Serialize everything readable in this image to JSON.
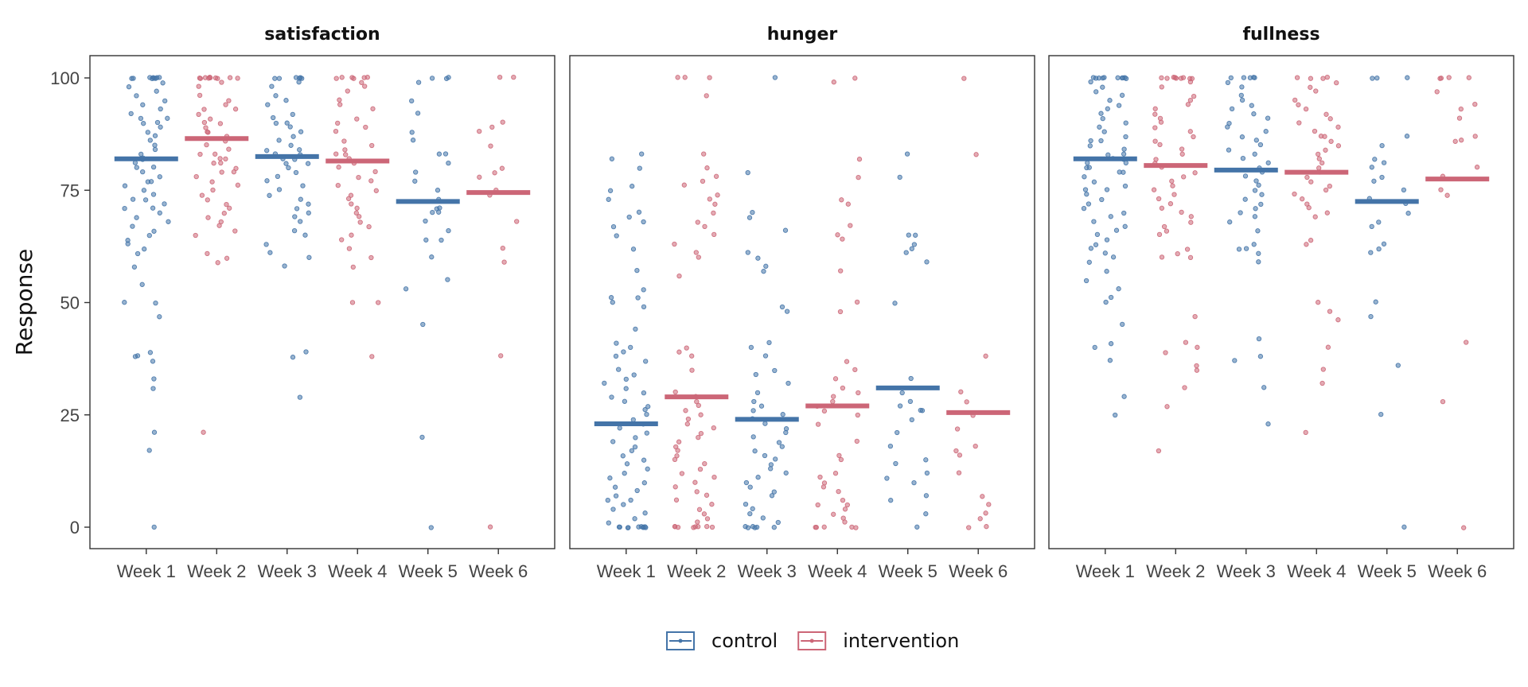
{
  "chart_data": {
    "type": "scatter",
    "subtype": "faceted jitter strip plot with group mean bars",
    "facets": [
      "satisfaction",
      "hunger",
      "fullness"
    ],
    "x_categories": [
      "Week 1",
      "Week 2",
      "Week 3",
      "Week 4",
      "Week 5",
      "Week 6"
    ],
    "ylabel": "Response",
    "yticks": [
      0,
      25,
      50,
      75,
      100
    ],
    "ylim": [
      -5,
      105
    ],
    "shared_y_axis": true,
    "grid": false,
    "legend": {
      "placement": "bottom-center",
      "entries": [
        {
          "name": "control",
          "color": "#4474a8"
        },
        {
          "name": "intervention",
          "color": "#cc6677"
        }
      ]
    },
    "week_group": {
      "Week 1": "control",
      "Week 2": "intervention",
      "Week 3": "control",
      "Week 4": "intervention",
      "Week 5": "control",
      "Week 6": "intervention"
    },
    "means": {
      "satisfaction": [
        82,
        86.5,
        82.5,
        81.5,
        72.5,
        74.5
      ],
      "hunger": [
        23,
        29,
        24,
        27,
        31,
        25.5
      ],
      "fullness": [
        82,
        80.5,
        79.5,
        79,
        72.5,
        77.5
      ]
    },
    "points": {
      "satisfaction": [
        [
          100,
          100,
          100,
          100,
          100,
          100,
          100,
          100,
          100,
          99,
          98,
          97,
          96,
          95,
          94,
          93,
          92,
          91,
          91,
          90,
          90,
          89,
          88,
          87,
          86,
          85,
          84,
          83,
          82,
          82,
          81,
          80,
          80,
          79,
          78,
          77,
          77,
          76,
          75,
          74,
          73,
          73,
          72,
          71,
          71,
          70,
          69,
          68,
          67,
          66,
          65,
          64,
          63,
          62,
          61,
          58,
          54,
          50,
          50,
          47,
          39,
          38,
          38,
          37,
          33,
          31,
          21,
          17,
          0
        ],
        [
          100,
          100,
          100,
          100,
          100,
          100,
          100,
          100,
          100,
          100,
          99,
          98,
          96,
          95,
          94,
          93,
          93,
          92,
          91,
          90,
          90,
          89,
          88,
          88,
          87,
          86,
          85,
          84,
          83,
          83,
          82,
          82,
          81,
          81,
          80,
          79,
          79,
          78,
          77,
          76,
          75,
          74,
          73,
          72,
          71,
          70,
          69,
          68,
          67,
          66,
          65,
          61,
          60,
          59,
          21
        ],
        [
          100,
          100,
          100,
          100,
          100,
          100,
          99,
          98,
          96,
          95,
          94,
          92,
          91,
          90,
          90,
          89,
          88,
          87,
          86,
          85,
          84,
          84,
          83,
          83,
          82,
          82,
          81,
          81,
          80,
          79,
          78,
          77,
          76,
          75,
          74,
          73,
          72,
          71,
          70,
          69,
          68,
          66,
          65,
          63,
          61,
          60,
          58,
          39,
          38,
          29
        ],
        [
          100,
          100,
          100,
          100,
          100,
          100,
          99,
          98,
          97,
          95,
          94,
          93,
          91,
          90,
          89,
          88,
          86,
          85,
          84,
          83,
          83,
          82,
          81,
          80,
          79,
          78,
          77,
          76,
          75,
          74,
          73,
          72,
          71,
          70,
          69,
          68,
          67,
          65,
          64,
          62,
          60,
          58,
          50,
          50,
          38
        ],
        [
          100,
          100,
          100,
          99,
          95,
          92,
          88,
          86,
          83,
          83,
          81,
          79,
          77,
          75,
          73,
          71,
          71,
          70,
          70,
          68,
          66,
          64,
          64,
          60,
          55,
          53,
          45,
          20,
          0
        ],
        [
          100,
          100,
          90,
          89,
          88,
          85,
          80,
          79,
          78,
          75,
          74,
          68,
          62,
          59,
          38,
          0
        ]
      ],
      "hunger": [
        [
          83,
          82,
          80,
          76,
          75,
          73,
          70,
          69,
          68,
          67,
          65,
          62,
          57,
          53,
          51,
          51,
          50,
          49,
          44,
          41,
          40,
          39,
          38,
          37,
          35,
          34,
          33,
          32,
          31,
          30,
          29,
          28,
          27,
          26,
          25,
          24,
          23,
          22,
          21,
          20,
          19,
          18,
          17,
          16,
          15,
          14,
          13,
          12,
          11,
          10,
          9,
          8,
          7,
          6,
          6,
          5,
          4,
          3,
          2,
          1,
          0,
          0,
          0,
          0,
          0,
          0,
          0,
          0,
          0,
          0
        ],
        [
          100,
          100,
          100,
          96,
          83,
          80,
          78,
          77,
          76,
          74,
          73,
          72,
          70,
          68,
          67,
          65,
          63,
          61,
          60,
          56,
          40,
          39,
          38,
          35,
          30,
          29,
          28,
          27,
          26,
          25,
          24,
          23,
          22,
          21,
          20,
          19,
          18,
          17,
          16,
          15,
          14,
          13,
          12,
          11,
          10,
          9,
          8,
          7,
          6,
          5,
          4,
          3,
          2,
          1,
          0,
          0,
          0,
          0,
          0,
          0,
          0,
          0
        ],
        [
          100,
          79,
          70,
          69,
          66,
          61,
          60,
          58,
          57,
          49,
          48,
          41,
          40,
          38,
          35,
          34,
          32,
          30,
          28,
          27,
          26,
          25,
          24,
          23,
          22,
          21,
          20,
          19,
          18,
          17,
          16,
          15,
          14,
          13,
          12,
          11,
          10,
          9,
          8,
          7,
          5,
          4,
          3,
          2,
          1,
          0,
          0,
          0,
          0,
          0,
          0
        ],
        [
          100,
          99,
          82,
          78,
          73,
          72,
          67,
          65,
          64,
          57,
          50,
          48,
          37,
          35,
          33,
          31,
          30,
          29,
          28,
          27,
          26,
          25,
          23,
          19,
          16,
          15,
          12,
          11,
          10,
          9,
          8,
          6,
          5,
          5,
          4,
          3,
          2,
          1,
          0,
          0,
          0,
          0,
          0
        ],
        [
          83,
          78,
          65,
          65,
          63,
          62,
          61,
          59,
          50,
          33,
          30,
          28,
          27,
          26,
          26,
          24,
          21,
          18,
          15,
          14,
          12,
          11,
          10,
          7,
          6,
          3,
          0
        ],
        [
          100,
          83,
          38,
          30,
          28,
          25,
          22,
          18,
          17,
          16,
          12,
          7,
          5,
          3,
          2,
          0,
          0
        ]
      ],
      "fullness": [
        [
          100,
          100,
          100,
          100,
          100,
          100,
          100,
          100,
          100,
          100,
          99,
          98,
          97,
          96,
          95,
          94,
          93,
          92,
          91,
          90,
          89,
          88,
          87,
          86,
          86,
          85,
          84,
          83,
          83,
          82,
          82,
          81,
          81,
          80,
          80,
          79,
          79,
          78,
          77,
          76,
          75,
          75,
          74,
          73,
          72,
          71,
          70,
          69,
          68,
          67,
          66,
          65,
          64,
          63,
          62,
          61,
          60,
          59,
          57,
          55,
          53,
          51,
          50,
          45,
          41,
          40,
          37,
          29,
          25
        ],
        [
          100,
          100,
          100,
          100,
          100,
          100,
          100,
          100,
          100,
          99,
          98,
          96,
          95,
          94,
          93,
          92,
          91,
          90,
          89,
          88,
          87,
          86,
          85,
          84,
          83,
          82,
          81,
          80,
          79,
          78,
          77,
          76,
          75,
          74,
          73,
          72,
          71,
          70,
          69,
          68,
          67,
          66,
          65,
          62,
          61,
          60,
          60,
          47,
          41,
          40,
          39,
          36,
          35,
          31,
          27,
          17
        ],
        [
          100,
          100,
          100,
          100,
          100,
          99,
          98,
          96,
          95,
          94,
          93,
          92,
          91,
          90,
          89,
          88,
          87,
          86,
          85,
          84,
          83,
          82,
          81,
          80,
          79,
          78,
          77,
          76,
          75,
          74,
          73,
          72,
          71,
          70,
          69,
          68,
          66,
          63,
          62,
          62,
          61,
          59,
          42,
          38,
          37,
          31,
          23
        ],
        [
          100,
          100,
          100,
          100,
          99,
          98,
          97,
          95,
          94,
          93,
          92,
          91,
          90,
          89,
          88,
          87,
          87,
          86,
          85,
          84,
          83,
          82,
          81,
          80,
          79,
          78,
          77,
          76,
          75,
          74,
          73,
          72,
          71,
          70,
          69,
          64,
          63,
          50,
          48,
          46,
          40,
          35,
          32,
          21
        ],
        [
          100,
          100,
          100,
          87,
          85,
          82,
          81,
          80,
          78,
          77,
          75,
          73,
          72,
          70,
          68,
          67,
          63,
          62,
          61,
          50,
          47,
          36,
          25,
          0
        ],
        [
          100,
          100,
          100,
          100,
          97,
          94,
          93,
          91,
          87,
          86,
          86,
          80,
          78,
          75,
          74,
          41,
          28,
          0
        ]
      ]
    }
  }
}
